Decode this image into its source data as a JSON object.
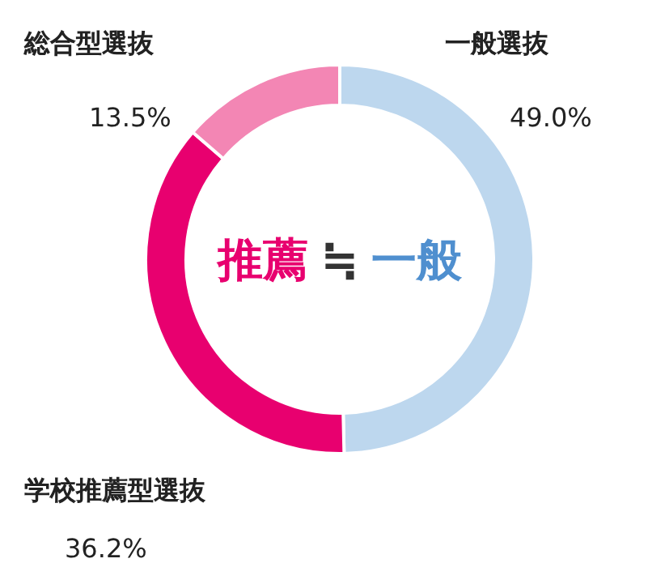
{
  "chart_data": {
    "type": "donut",
    "categories": [
      "一般選抜",
      "学校推薦型選抜",
      "総合型選抜"
    ],
    "values": [
      49.0,
      36.2,
      13.5
    ],
    "value_labels": [
      "49.0%",
      "36.2%",
      "13.5%"
    ],
    "colors": [
      "#bdd7ee",
      "#e8006f",
      "#f386b4"
    ],
    "annotations": [
      "推薦",
      "≒",
      "一般"
    ]
  }
}
